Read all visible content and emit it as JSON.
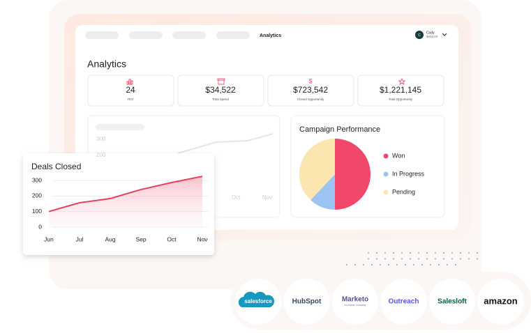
{
  "nav": {
    "active": "Analytics",
    "user_initial": "C",
    "user_name": "Cody",
    "user_balance": "$600.00"
  },
  "title": "Analytics",
  "stats": [
    {
      "value": "24",
      "label": "ROI"
    },
    {
      "value": "$34,522",
      "label": "Total Spend"
    },
    {
      "value": "$723,542",
      "label": "Closed Opportunity"
    },
    {
      "value": "$1,221,145",
      "label": "Total Opportunity"
    }
  ],
  "background_chart": {
    "yticks": [
      300,
      200
    ],
    "categories": [
      "Oct",
      "Nov"
    ]
  },
  "chart_data": [
    {
      "type": "line",
      "title": "Deals Closed",
      "categories": [
        "Jun",
        "Jul",
        "Aug",
        "Sep",
        "Oct",
        "Nov"
      ],
      "values": [
        100,
        157,
        184,
        242,
        287,
        327
      ],
      "color": "#e5405e",
      "ylim": [
        0,
        340
      ],
      "yticks": [
        0,
        100,
        200,
        300
      ],
      "grid": true
    },
    {
      "type": "pie",
      "title": "Campaign Performance",
      "categories": [
        "Won",
        "In Progress",
        "Pending"
      ],
      "values": [
        50,
        12,
        38
      ],
      "colors": [
        "#f0476a",
        "#9cc4f0",
        "#fce6b0"
      ],
      "legend": "right"
    }
  ],
  "integrations": [
    "salesforce",
    "HubSpot",
    "Marketo",
    "Outreach",
    "Salesloft",
    "amazon"
  ],
  "marketo_tagline": "An Adobe Company"
}
